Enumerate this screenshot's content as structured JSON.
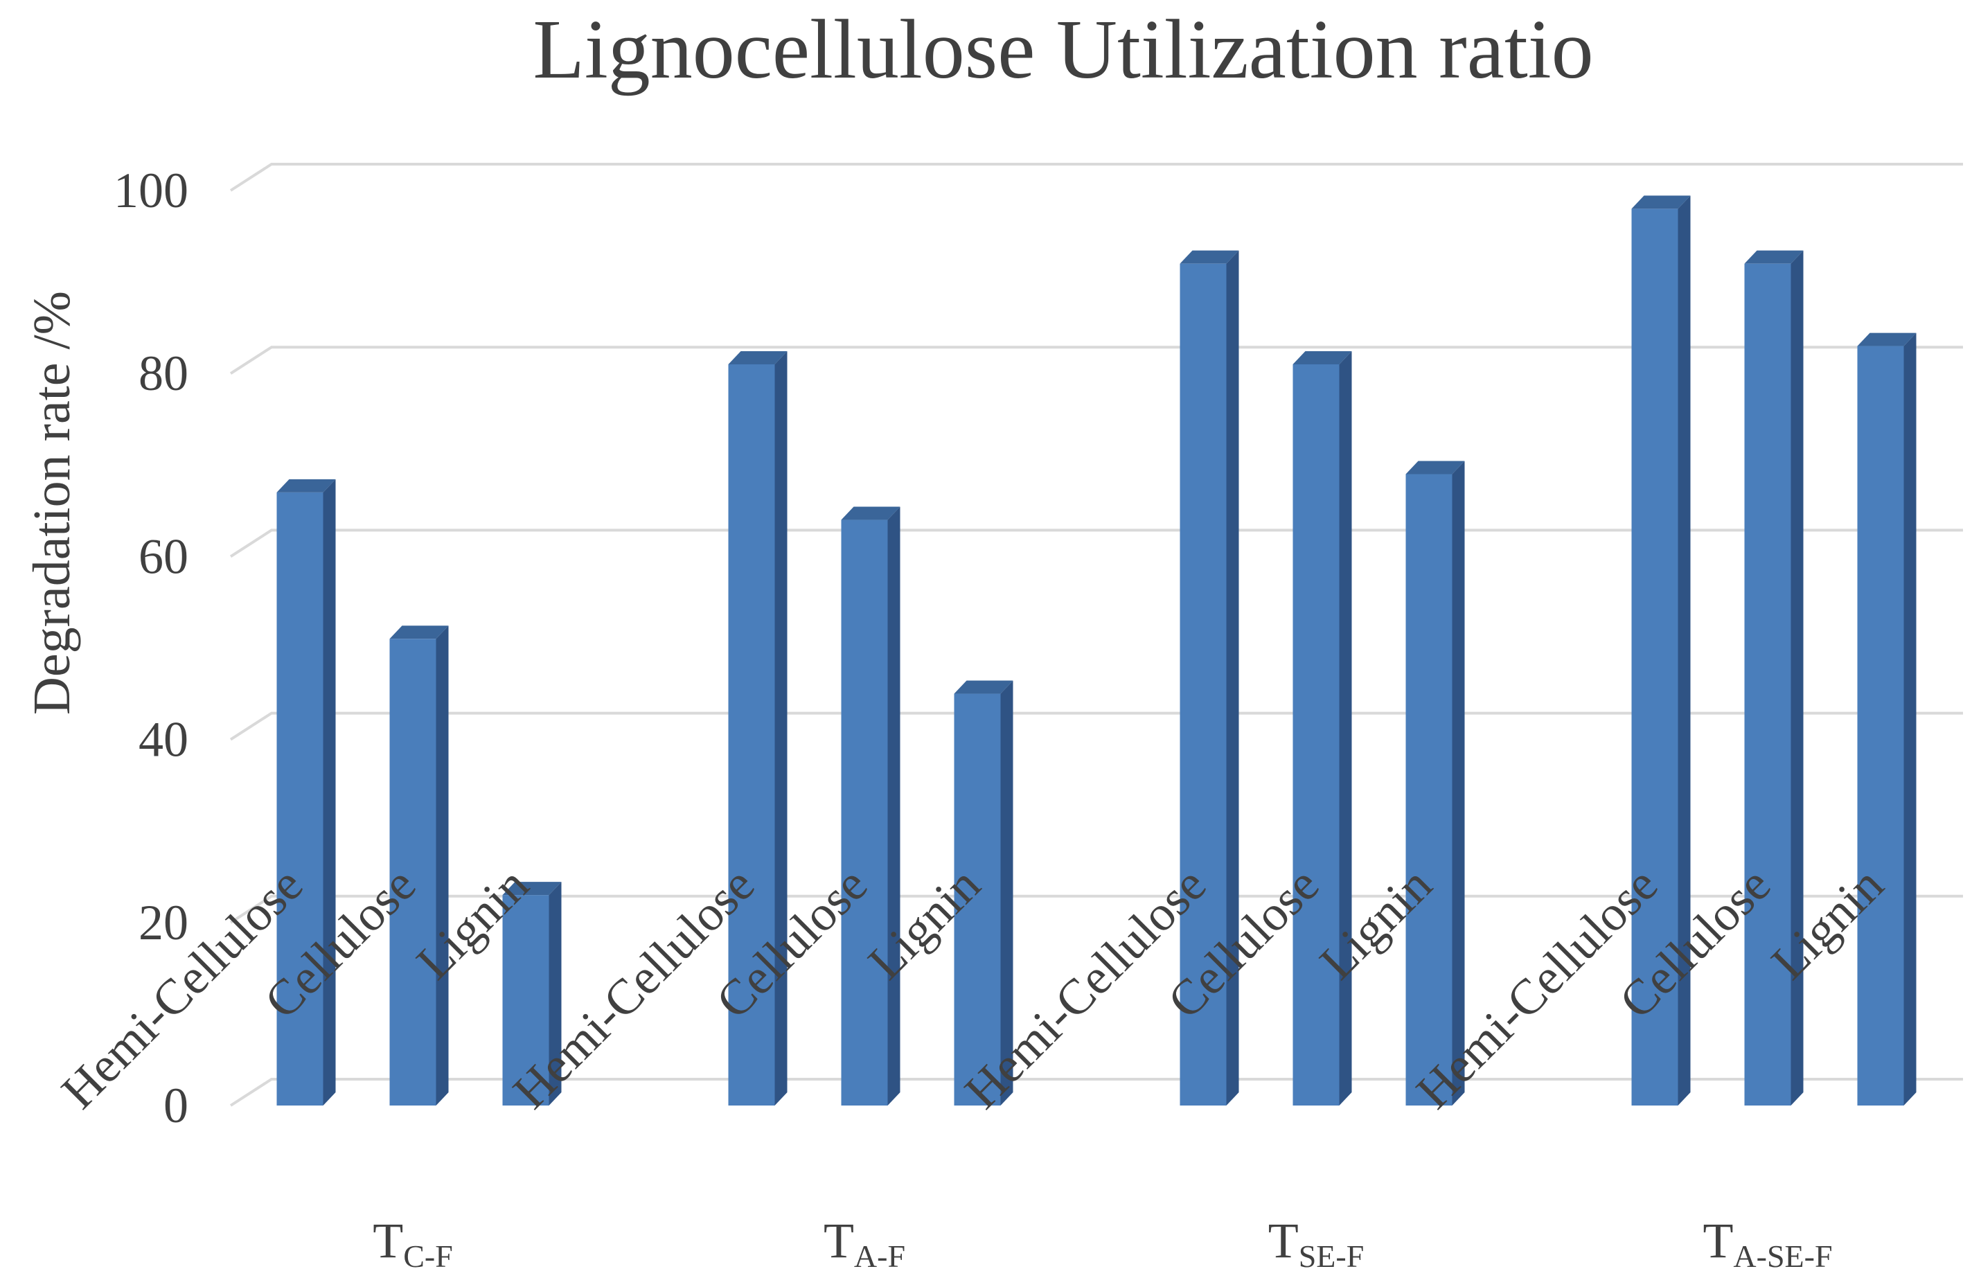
{
  "chart_data": {
    "type": "bar",
    "style": "3d-column",
    "title": "Lignocellulose Utilization ratio",
    "ylabel": "Degradation rate /%",
    "xlabel": "",
    "ylim": [
      0,
      100
    ],
    "yticks": [
      "0",
      "20",
      "40",
      "60",
      "80",
      "100"
    ],
    "grid": true,
    "legend": "none",
    "bar_color": "#4a7ebb",
    "groups": [
      {
        "label_main": "T",
        "label_sub": "C-F",
        "categories": [
          "Hemi-Cellulose",
          "Cellulose",
          "Lignin"
        ],
        "values": [
          67,
          51,
          23
        ]
      },
      {
        "label_main": "T",
        "label_sub": "A-F",
        "categories": [
          "Hemi-Cellulose",
          "Cellulose",
          "Lignin"
        ],
        "values": [
          81,
          64,
          45
        ]
      },
      {
        "label_main": "T",
        "label_sub": "SE-F",
        "categories": [
          "Hemi-Cellulose",
          "Cellulose",
          "Lignin"
        ],
        "values": [
          92,
          81,
          69
        ]
      },
      {
        "label_main": "T",
        "label_sub": "A-SE-F",
        "categories": [
          "Hemi-Cellulose",
          "Cellulose",
          "Lignin"
        ],
        "values": [
          98,
          92,
          83
        ]
      }
    ]
  }
}
